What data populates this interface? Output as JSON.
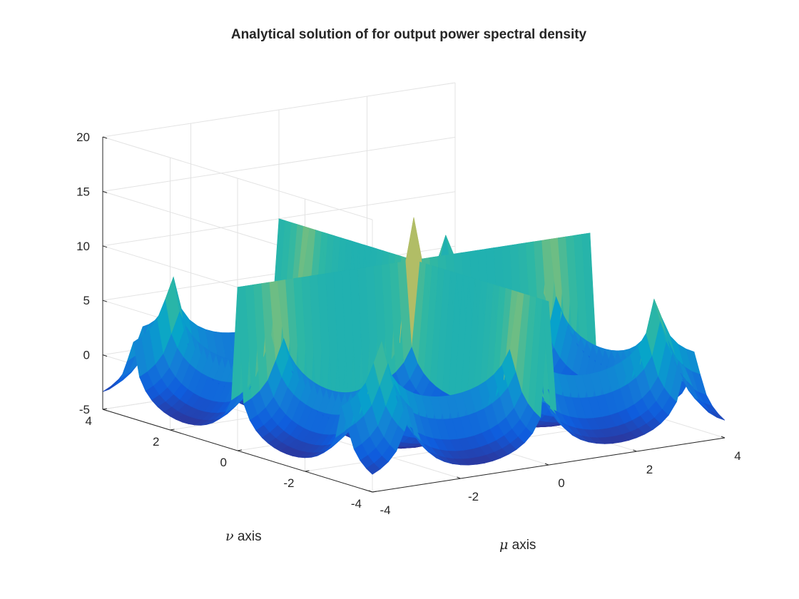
{
  "chart_data": {
    "type": "surface",
    "title": "Analytical solution of for output power spectral density",
    "xlabel": {
      "symbol": "μ",
      "text": " axis"
    },
    "ylabel": {
      "symbol": "ν",
      "text": " axis"
    },
    "zlabel": "",
    "xlim": [
      -4,
      4
    ],
    "ylim": [
      -4,
      4
    ],
    "zlim": [
      -5,
      20
    ],
    "x_ticks": [
      "-4",
      "-2",
      "0",
      "2",
      "4"
    ],
    "y_ticks": [
      "-4",
      "-2",
      "0",
      "2",
      "4"
    ],
    "z_ticks": [
      "-5",
      "0",
      "5",
      "10",
      "15",
      "20"
    ],
    "grid": true,
    "colormap": "parula",
    "colors": [
      "#352a87",
      "#0f5cdd",
      "#1481d6",
      "#06a4ca",
      "#2eb7a4",
      "#87bf77",
      "#d1bb59",
      "#fec832",
      "#f9fb0e"
    ],
    "surface_function": "z = -2 * log(|sin(mu)| * |sin(nu)|), clipped to [-5, 15] at the peak and 10 on ridges",
    "peak": {
      "mu": 0,
      "nu": 0,
      "z": 15
    },
    "ridge_height": 10,
    "corner_height": -4.5
  }
}
